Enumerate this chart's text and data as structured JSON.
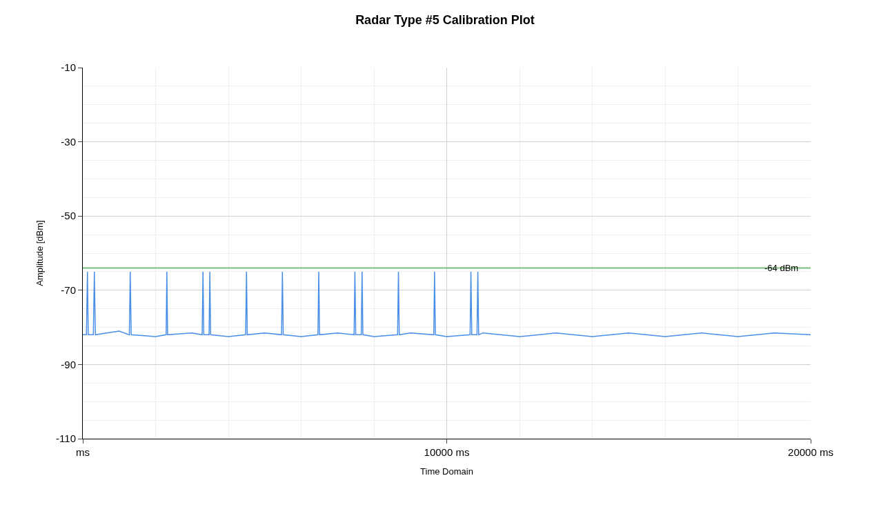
{
  "chart_data": {
    "type": "line",
    "title": "Radar Type #5 Calibration Plot",
    "xlabel": "Time Domain",
    "ylabel": "Amplitude [dBm]",
    "xlim": [
      0,
      20000
    ],
    "ylim": [
      -110,
      -10
    ],
    "xticks": [
      {
        "value": 0,
        "label": "ms"
      },
      {
        "value": 10000,
        "label": "10000 ms"
      },
      {
        "value": 20000,
        "label": "20000 ms"
      }
    ],
    "yticks": [
      -10,
      -30,
      -50,
      -70,
      -90,
      -110
    ],
    "grid": true,
    "marker": "none",
    "line_style": "solid",
    "series": [
      {
        "color": "#4a8fe7",
        "x": [
          0,
          100,
          128,
          150,
          290,
          318,
          345,
          1000,
          1280,
          1303,
          1330,
          2000,
          2290,
          2310,
          2330,
          3000,
          3280,
          3303,
          3325,
          3470,
          3491,
          3512,
          4000,
          4475,
          4498,
          4520,
          5000,
          5462,
          5485,
          5508,
          6000,
          6462,
          6484,
          6506,
          7000,
          7455,
          7477,
          7500,
          7652,
          7674,
          7696,
          8000,
          8650,
          8673,
          8696,
          9000,
          9644,
          9666,
          9688,
          10000,
          10642,
          10665,
          10688,
          10832,
          10855,
          10878,
          11000,
          12000,
          13000,
          14000,
          15000,
          16000,
          17000,
          18000,
          19000,
          20000
        ],
        "values": [
          -82,
          -82,
          -65,
          -82,
          -82,
          -65,
          -82,
          -81,
          -82,
          -65,
          -82,
          -82.5,
          -82,
          -65,
          -82,
          -81.5,
          -82,
          -65,
          -82,
          -82,
          -65,
          -82,
          -82.5,
          -82,
          -65,
          -82,
          -81.5,
          -82,
          -65,
          -82,
          -82.5,
          -82,
          -65,
          -82,
          -81.5,
          -82,
          -65,
          -82,
          -82,
          -65,
          -82,
          -82.5,
          -82,
          -65,
          -82,
          -81.5,
          -82,
          -65,
          -82,
          -82.5,
          -82,
          -65,
          -82,
          -82,
          -65,
          -82,
          -81.5,
          -82.5,
          -81.5,
          -82.5,
          -81.5,
          -82.5,
          -81.5,
          -82.5,
          -81.5,
          -82
        ]
      }
    ],
    "ref_lines": [
      {
        "axis": "y",
        "value": -64,
        "label": "-64 dBm",
        "color": "#7dbf7d",
        "line_style": "solid"
      }
    ]
  }
}
